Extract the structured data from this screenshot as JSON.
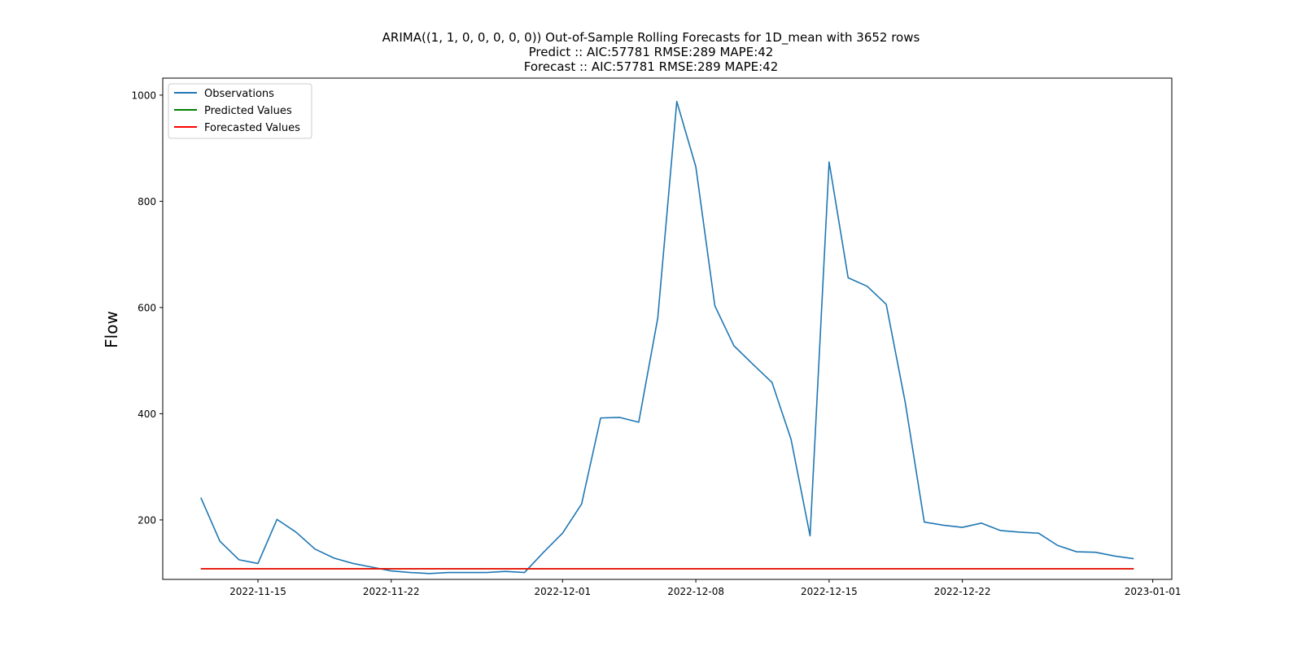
{
  "chart_data": {
    "type": "line",
    "title_lines": [
      "ARIMA((1, 1, 0, 0, 0, 0, 0)) Out-of-Sample Rolling Forecasts for 1D_mean with 3652 rows",
      "Predict :: AIC:57781 RMSE:289 MAPE:42",
      "Forecast :: AIC:57781 RMSE:289 MAPE:42"
    ],
    "xlabel": "",
    "ylabel": "Flow",
    "xlim": [
      "2022-11-10",
      "2023-01-02"
    ],
    "ylim": [
      88,
      1032
    ],
    "x_ticks": [
      "2022-11-15",
      "2022-11-22",
      "2022-12-01",
      "2022-12-08",
      "2022-12-15",
      "2022-12-22",
      "2023-01-01"
    ],
    "y_ticks": [
      200,
      400,
      600,
      800,
      1000
    ],
    "grid": false,
    "legend_position": "upper-left",
    "series": [
      {
        "name": "Observations",
        "color": "#1f77b4",
        "x": [
          "2022-11-12",
          "2022-11-13",
          "2022-11-14",
          "2022-11-15",
          "2022-11-16",
          "2022-11-17",
          "2022-11-18",
          "2022-11-19",
          "2022-11-20",
          "2022-11-21",
          "2022-11-22",
          "2022-11-23",
          "2022-11-24",
          "2022-11-25",
          "2022-11-26",
          "2022-11-27",
          "2022-11-28",
          "2022-11-29",
          "2022-11-30",
          "2022-12-01",
          "2022-12-02",
          "2022-12-03",
          "2022-12-04",
          "2022-12-05",
          "2022-12-06",
          "2022-12-07",
          "2022-12-08",
          "2022-12-09",
          "2022-12-10",
          "2022-12-11",
          "2022-12-12",
          "2022-12-13",
          "2022-12-14",
          "2022-12-15",
          "2022-12-16",
          "2022-12-17",
          "2022-12-18",
          "2022-12-19",
          "2022-12-20",
          "2022-12-21",
          "2022-12-22",
          "2022-12-23",
          "2022-12-24",
          "2022-12-25",
          "2022-12-26",
          "2022-12-27",
          "2022-12-28",
          "2022-12-29",
          "2022-12-30",
          "2022-12-31"
        ],
        "values": [
          242,
          160,
          125,
          118,
          201,
          177,
          145,
          128,
          118,
          111,
          104,
          101,
          99,
          101,
          101,
          101,
          103,
          101,
          139,
          175,
          230,
          392,
          393,
          384,
          580,
          988,
          865,
          603,
          528,
          493,
          459,
          352,
          170,
          874,
          656,
          640,
          606,
          421,
          196,
          190,
          186,
          194,
          180,
          177,
          175,
          152,
          140,
          139,
          132,
          127
        ]
      },
      {
        "name": "Predicted Values",
        "color": "#008000",
        "x": [
          "2022-11-12",
          "2022-12-31"
        ],
        "values": [
          108,
          108
        ]
      },
      {
        "name": "Forecasted Values",
        "color": "#ff0000",
        "x": [
          "2022-11-12",
          "2022-12-31"
        ],
        "values": [
          108,
          108
        ]
      }
    ]
  }
}
